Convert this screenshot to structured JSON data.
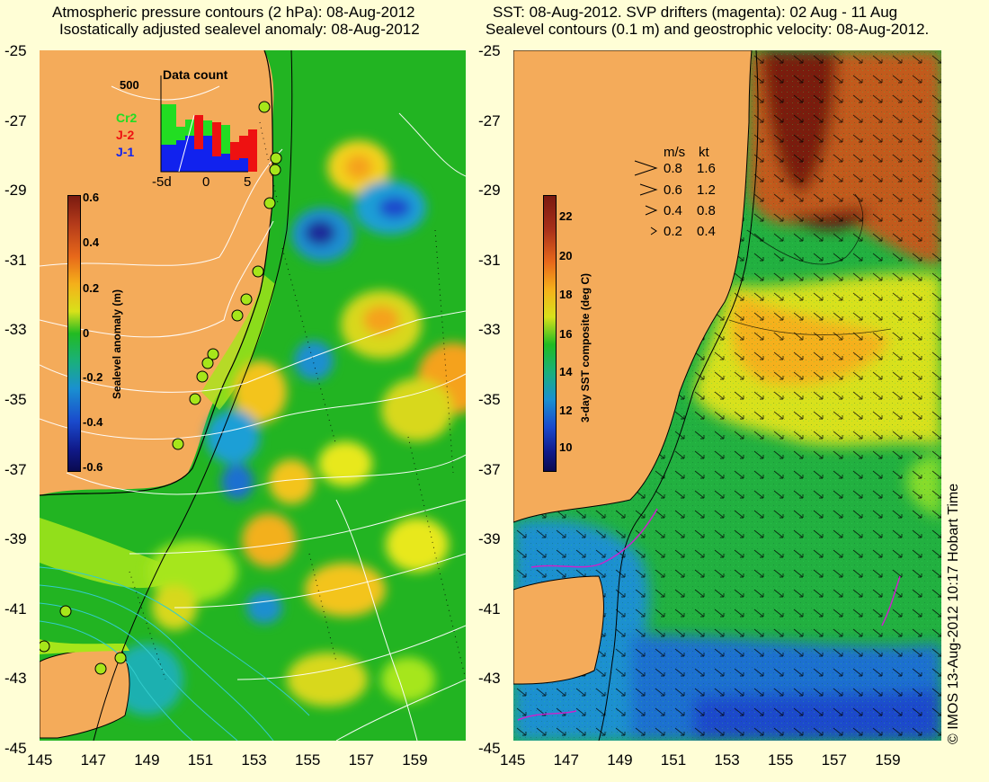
{
  "left_panel": {
    "title_line1": "Atmospheric pressure contours (2 hPa): 08-Aug-2012",
    "title_line2": "Isostatically adjusted sealevel anomaly: 08-Aug-2012",
    "colorbar": {
      "label": "Sealevel anomaly (m)",
      "ticks": [
        "0.6",
        "0.4",
        "0.2",
        "0",
        "-0.2",
        "-0.4",
        "-0.6"
      ]
    },
    "data_count": {
      "title": "Data count",
      "max_label": "500",
      "x_ticks": [
        "-5d",
        "0",
        "5"
      ],
      "legend": [
        {
          "name": "Cr2",
          "color": "#22dd22"
        },
        {
          "name": "J-2",
          "color": "#ee1111"
        },
        {
          "name": "J-1",
          "color": "#1122ee"
        }
      ]
    }
  },
  "right_panel": {
    "title_line1": "SST: 08-Aug-2012. SVP drifters (magenta): 02 Aug - 11 Aug",
    "title_line2": "Sealevel contours (0.1 m) and geostrophic velocity: 08-Aug-2012.",
    "colorbar": {
      "label": "3-day SST composite (deg C)",
      "ticks": [
        "22",
        "20",
        "18",
        "16",
        "14",
        "12",
        "10"
      ]
    },
    "velocity_key": {
      "header_ms": "m/s",
      "header_kt": "kt",
      "rows": [
        {
          "ms": "0.8",
          "kt": "1.6"
        },
        {
          "ms": "0.6",
          "kt": "1.2"
        },
        {
          "ms": "0.4",
          "kt": "0.8"
        },
        {
          "ms": "0.2",
          "kt": "0.4"
        }
      ]
    }
  },
  "axes": {
    "lat_ticks": [
      "-25",
      "-27",
      "-29",
      "-31",
      "-33",
      "-35",
      "-37",
      "-39",
      "-41",
      "-43",
      "-45"
    ],
    "lon_ticks": [
      "145",
      "147",
      "149",
      "151",
      "153",
      "155",
      "157",
      "159"
    ]
  },
  "credit": "© IMOS 13-Aug-2012 10:17 Hobart Time",
  "colors": {
    "background": "#fffed6",
    "land": "#f4ab5a",
    "ocean_green": "#22bb22"
  }
}
